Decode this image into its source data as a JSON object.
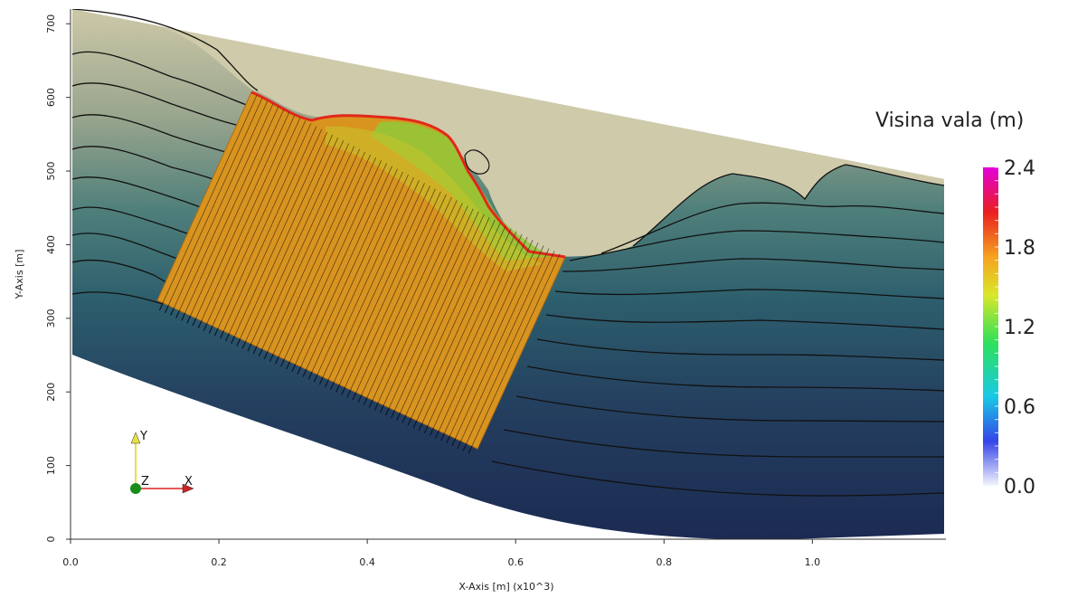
{
  "chart_data": {
    "type": "heatmap",
    "xlabel": "X-Axis [m] (x10^3)",
    "ylabel": "Y-Axis [m]",
    "xlim": [
      0.0,
      1.18
    ],
    "ylim": [
      0,
      720
    ],
    "x_ticks": [
      "0.0",
      "0.2",
      "0.4",
      "0.6",
      "0.8",
      "1.0"
    ],
    "y_ticks": [
      "0",
      "100",
      "200",
      "300",
      "400",
      "500",
      "600",
      "700"
    ],
    "colorbar": {
      "title": "Visina vala (m)",
      "range": [
        0.0,
        2.4
      ],
      "labels": [
        "2.4",
        "1.8",
        "1.2",
        "0.6",
        "0.0"
      ],
      "colormap": [
        "#eef0fb",
        "#1a2ee8",
        "#13d8e0",
        "#3fe33f",
        "#f3e12e",
        "#f57f17",
        "#e3171d",
        "#e000d8"
      ]
    },
    "wave_region": {
      "description_value_approx": 1.9,
      "color": "#d99420"
    },
    "terrain": {
      "shallow_color": "#cdc8a8",
      "deep_color": "#1b2a52"
    },
    "orientation_axes": {
      "y": "Y",
      "z": "Z",
      "x": "X"
    }
  }
}
